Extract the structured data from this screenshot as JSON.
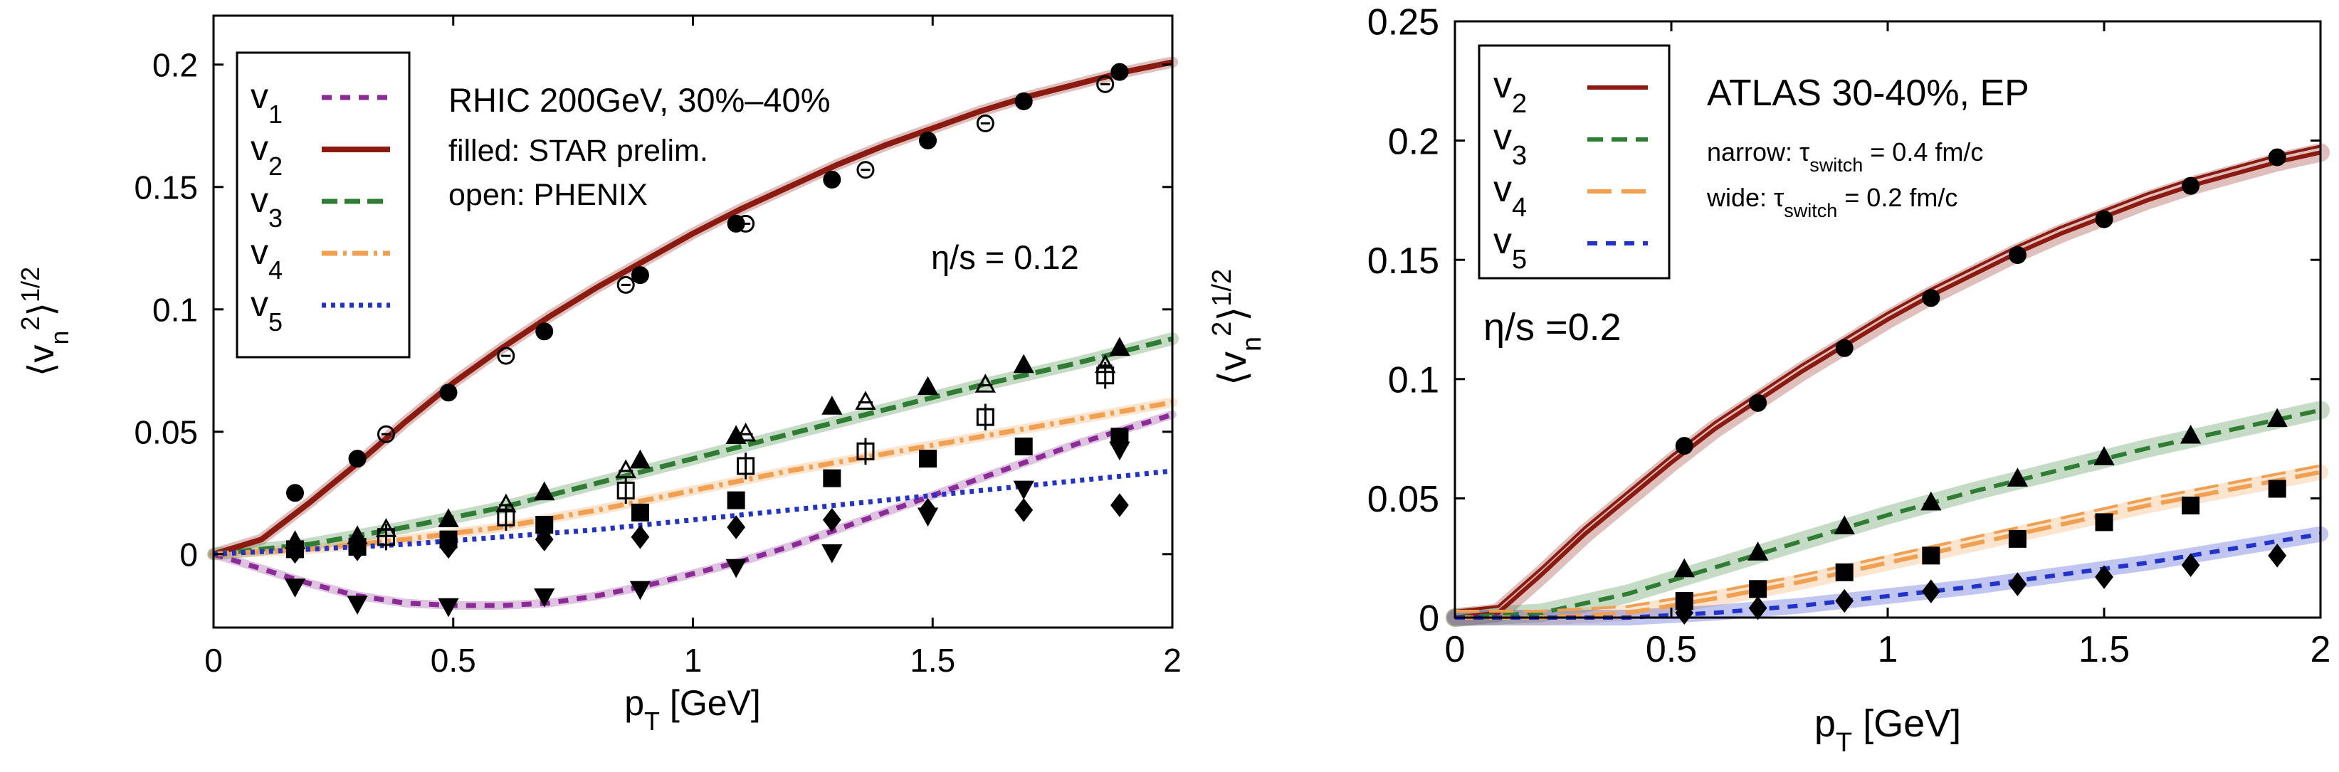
{
  "colors": {
    "v1": "#8b2c96",
    "v2": "#8b1a10",
    "v3": "#2e7d32",
    "v4": "#f0a050",
    "v5": "#2233cc"
  },
  "chart_data": [
    {
      "type": "line",
      "id": "left",
      "ylabel": "⟨vn²⟩^1/2",
      "xlabel": "pT [GeV]",
      "xlim": [
        0,
        2
      ],
      "ylim": [
        -0.03,
        0.22
      ],
      "xticks": [
        "0",
        "0.5",
        "1",
        "1.5",
        "2"
      ],
      "yticks": [
        "0",
        "0.05",
        "0.1",
        "0.15",
        "0.2"
      ],
      "annotations": {
        "title": "RHIC 200GeV, 30%–40%",
        "filled": "filled: STAR prelim.",
        "open": "open: PHENIX",
        "eta_s": "η/s = 0.12"
      },
      "legend": [
        "v1",
        "v2",
        "v3",
        "v4",
        "v5"
      ],
      "series": [
        {
          "name": "v1",
          "x": [
            0,
            0.1,
            0.2,
            0.3,
            0.4,
            0.5,
            0.6,
            0.7,
            0.8,
            0.9,
            1.0,
            1.1,
            1.2,
            1.3,
            1.4,
            1.5,
            1.6,
            1.7,
            1.8,
            1.9,
            2.0
          ],
          "y": [
            0,
            -0.006,
            -0.012,
            -0.017,
            -0.02,
            -0.021,
            -0.021,
            -0.02,
            -0.017,
            -0.013,
            -0.008,
            -0.003,
            0.003,
            0.01,
            0.017,
            0.024,
            0.031,
            0.038,
            0.045,
            0.051,
            0.057
          ]
        },
        {
          "name": "v2",
          "x": [
            0,
            0.1,
            0.2,
            0.3,
            0.4,
            0.5,
            0.6,
            0.7,
            0.8,
            0.9,
            1.0,
            1.1,
            1.2,
            1.3,
            1.4,
            1.5,
            1.6,
            1.7,
            1.8,
            1.9,
            2.0
          ],
          "y": [
            0,
            0.006,
            0.021,
            0.037,
            0.054,
            0.07,
            0.084,
            0.097,
            0.109,
            0.12,
            0.131,
            0.141,
            0.15,
            0.159,
            0.167,
            0.174,
            0.181,
            0.187,
            0.192,
            0.197,
            0.201
          ]
        },
        {
          "name": "v3",
          "x": [
            0,
            0.2,
            0.4,
            0.6,
            0.8,
            1.0,
            1.2,
            1.4,
            1.6,
            1.8,
            2.0
          ],
          "y": [
            0,
            0.004,
            0.011,
            0.019,
            0.029,
            0.039,
            0.049,
            0.059,
            0.069,
            0.078,
            0.088
          ]
        },
        {
          "name": "v4",
          "x": [
            0,
            0.2,
            0.4,
            0.6,
            0.8,
            1.0,
            1.2,
            1.4,
            1.6,
            1.8,
            2.0
          ],
          "y": [
            0,
            0.002,
            0.006,
            0.011,
            0.018,
            0.026,
            0.034,
            0.041,
            0.048,
            0.055,
            0.062
          ]
        },
        {
          "name": "v5",
          "x": [
            0,
            0.2,
            0.4,
            0.6,
            0.8,
            1.0,
            1.2,
            1.4,
            1.6,
            1.8,
            2.0
          ],
          "y": [
            0,
            0.002,
            0.004,
            0.007,
            0.01,
            0.014,
            0.018,
            0.022,
            0.026,
            0.03,
            0.034
          ]
        }
      ],
      "markers": [
        {
          "series": "v2",
          "style": "filled",
          "shape": "circle",
          "points": [
            [
              0.17,
              0.025
            ],
            [
              0.3,
              0.039
            ],
            [
              0.49,
              0.066
            ],
            [
              0.69,
              0.091
            ],
            [
              0.89,
              0.114
            ],
            [
              1.09,
              0.135
            ],
            [
              1.29,
              0.153
            ],
            [
              1.49,
              0.169
            ],
            [
              1.69,
              0.185
            ],
            [
              1.89,
              0.197
            ]
          ]
        },
        {
          "series": "v2",
          "style": "open",
          "shape": "circle",
          "points": [
            [
              0.36,
              0.049
            ],
            [
              0.61,
              0.081
            ],
            [
              0.86,
              0.11
            ],
            [
              1.11,
              0.135
            ],
            [
              1.36,
              0.157
            ],
            [
              1.61,
              0.176
            ],
            [
              1.86,
              0.192
            ]
          ]
        },
        {
          "series": "v3",
          "style": "filled",
          "shape": "triangle",
          "points": [
            [
              0.17,
              0.005
            ],
            [
              0.3,
              0.007
            ],
            [
              0.49,
              0.014
            ],
            [
              0.69,
              0.025
            ],
            [
              0.89,
              0.038
            ],
            [
              1.09,
              0.048
            ],
            [
              1.29,
              0.06
            ],
            [
              1.49,
              0.068
            ],
            [
              1.69,
              0.077
            ],
            [
              1.89,
              0.084
            ]
          ]
        },
        {
          "series": "v3",
          "style": "open",
          "shape": "triangle",
          "points": [
            [
              0.36,
              0.01
            ],
            [
              0.61,
              0.02
            ],
            [
              0.86,
              0.034
            ],
            [
              1.11,
              0.049
            ],
            [
              1.36,
              0.062
            ],
            [
              1.61,
              0.069
            ],
            [
              1.86,
              0.077
            ]
          ]
        },
        {
          "series": "v4",
          "style": "filled",
          "shape": "square",
          "points": [
            [
              0.17,
              0.002
            ],
            [
              0.3,
              0.003
            ],
            [
              0.49,
              0.006
            ],
            [
              0.69,
              0.012
            ],
            [
              0.89,
              0.017
            ],
            [
              1.09,
              0.022
            ],
            [
              1.29,
              0.031
            ],
            [
              1.49,
              0.039
            ],
            [
              1.69,
              0.044
            ],
            [
              1.89,
              0.048
            ]
          ]
        },
        {
          "series": "v4",
          "style": "open",
          "shape": "square",
          "points": [
            [
              0.36,
              0.007
            ],
            [
              0.61,
              0.015
            ],
            [
              0.86,
              0.026
            ],
            [
              1.11,
              0.036
            ],
            [
              1.36,
              0.042
            ],
            [
              1.61,
              0.056
            ],
            [
              1.86,
              0.073
            ]
          ]
        },
        {
          "series": "v1",
          "style": "filled",
          "shape": "triangle-down",
          "points": [
            [
              0.17,
              -0.013
            ],
            [
              0.3,
              -0.02
            ],
            [
              0.49,
              -0.021
            ],
            [
              0.69,
              -0.017
            ],
            [
              0.89,
              -0.014
            ],
            [
              1.09,
              -0.005
            ],
            [
              1.29,
              0.001
            ],
            [
              1.49,
              0.016
            ],
            [
              1.69,
              0.027
            ],
            [
              1.89,
              0.043
            ]
          ]
        },
        {
          "series": "v5",
          "style": "filled",
          "shape": "diamond",
          "points": [
            [
              0.17,
              0.001
            ],
            [
              0.3,
              0.002
            ],
            [
              0.49,
              0.003
            ],
            [
              0.69,
              0.006
            ],
            [
              0.89,
              0.007
            ],
            [
              1.09,
              0.011
            ],
            [
              1.29,
              0.014
            ],
            [
              1.49,
              0.018
            ],
            [
              1.69,
              0.018
            ],
            [
              1.89,
              0.02
            ]
          ]
        }
      ]
    },
    {
      "type": "line",
      "id": "right",
      "ylabel": "⟨vn²⟩^1/2",
      "xlabel": "pT [GeV]",
      "xlim": [
        0,
        2
      ],
      "ylim": [
        0,
        0.25
      ],
      "xticks": [
        "0",
        "0.5",
        "1",
        "1.5",
        "2"
      ],
      "yticks": [
        "0",
        "0.05",
        "0.1",
        "0.15",
        "0.2",
        "0.25"
      ],
      "annotations": {
        "title": "ATLAS 30-40%, EP",
        "narrow_prefix": "narrow: τ",
        "narrow_sub": "switch",
        "narrow_value": " = 0.4 fm/c",
        "wide_prefix": "wide: τ",
        "wide_sub": "switch",
        "wide_value": " = 0.2 fm/c",
        "eta_s": "η/s =0.2"
      },
      "legend": [
        "v2",
        "v3",
        "v4",
        "v5"
      ],
      "series": [
        {
          "name": "v2",
          "x": [
            0,
            0.1,
            0.2,
            0.3,
            0.4,
            0.5,
            0.6,
            0.7,
            0.8,
            0.9,
            1.0,
            1.1,
            1.2,
            1.3,
            1.4,
            1.5,
            1.6,
            1.7,
            1.8,
            1.9,
            2.0
          ],
          "y": [
            0,
            0.002,
            0.018,
            0.035,
            0.05,
            0.065,
            0.079,
            0.091,
            0.103,
            0.114,
            0.125,
            0.135,
            0.144,
            0.153,
            0.161,
            0.168,
            0.175,
            0.181,
            0.186,
            0.191,
            0.195
          ]
        },
        {
          "name": "v3",
          "x": [
            0,
            0.2,
            0.4,
            0.6,
            0.8,
            1.0,
            1.2,
            1.4,
            1.6,
            1.8,
            2.0
          ],
          "y": [
            0,
            0.002,
            0.01,
            0.021,
            0.032,
            0.043,
            0.053,
            0.062,
            0.071,
            0.079,
            0.087
          ]
        },
        {
          "name": "v4",
          "x": [
            0,
            0.2,
            0.4,
            0.6,
            0.8,
            1.0,
            1.2,
            1.4,
            1.6,
            1.8,
            2.0
          ],
          "y": [
            0,
            0,
            0.002,
            0.008,
            0.015,
            0.023,
            0.031,
            0.039,
            0.047,
            0.054,
            0.061
          ]
        },
        {
          "name": "v5",
          "x": [
            0,
            0.2,
            0.4,
            0.6,
            0.8,
            1.0,
            1.2,
            1.4,
            1.6,
            1.8,
            2.0
          ],
          "y": [
            0,
            0,
            0,
            0.002,
            0.005,
            0.009,
            0.013,
            0.018,
            0.023,
            0.029,
            0.035
          ]
        }
      ],
      "markers": [
        {
          "series": "v2",
          "style": "filled",
          "shape": "circle",
          "points": [
            [
              0.53,
              0.072
            ],
            [
              0.7,
              0.09
            ],
            [
              0.9,
              0.113
            ],
            [
              1.1,
              0.134
            ],
            [
              1.3,
              0.152
            ],
            [
              1.5,
              0.167
            ],
            [
              1.7,
              0.181
            ],
            [
              1.9,
              0.193
            ]
          ]
        },
        {
          "series": "v3",
          "style": "filled",
          "shape": "triangle",
          "points": [
            [
              0.53,
              0.02
            ],
            [
              0.7,
              0.027
            ],
            [
              0.9,
              0.038
            ],
            [
              1.1,
              0.048
            ],
            [
              1.3,
              0.058
            ],
            [
              1.5,
              0.067
            ],
            [
              1.7,
              0.076
            ],
            [
              1.9,
              0.083
            ]
          ]
        },
        {
          "series": "v4",
          "style": "filled",
          "shape": "square",
          "points": [
            [
              0.53,
              0.007
            ],
            [
              0.7,
              0.012
            ],
            [
              0.9,
              0.019
            ],
            [
              1.1,
              0.026
            ],
            [
              1.3,
              0.033
            ],
            [
              1.5,
              0.04
            ],
            [
              1.7,
              0.047
            ],
            [
              1.9,
              0.054
            ]
          ]
        },
        {
          "series": "v5",
          "style": "filled",
          "shape": "diamond",
          "points": [
            [
              0.53,
              0.002
            ],
            [
              0.7,
              0.004
            ],
            [
              0.9,
              0.007
            ],
            [
              1.1,
              0.011
            ],
            [
              1.3,
              0.014
            ],
            [
              1.5,
              0.017
            ],
            [
              1.7,
              0.022
            ],
            [
              1.9,
              0.026
            ]
          ]
        }
      ]
    }
  ]
}
